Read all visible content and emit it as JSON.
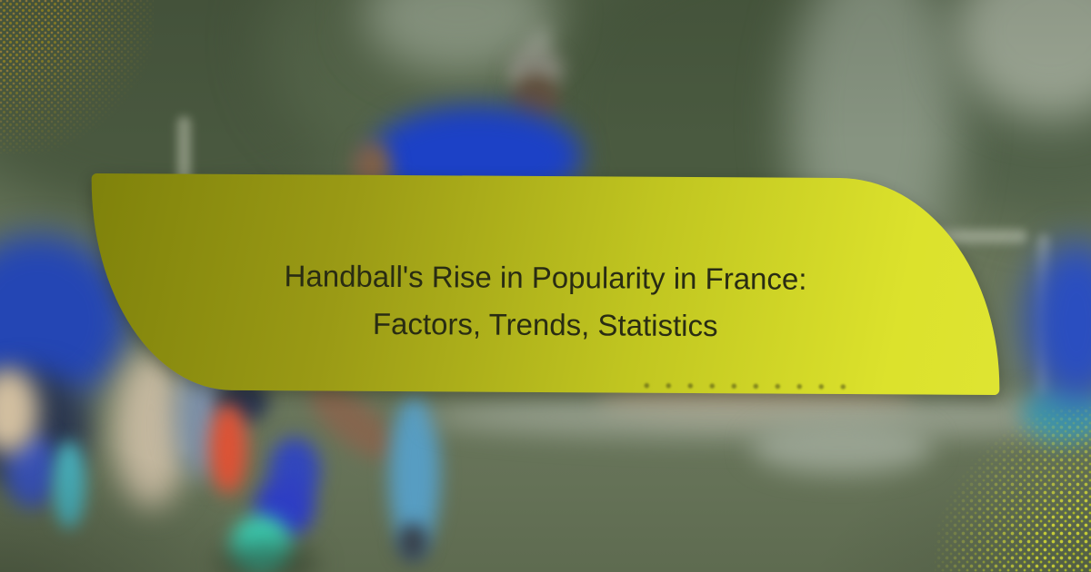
{
  "card": {
    "title_line1": "Handball's Rise in Popularity in France:",
    "title_line2": "Factors, Trends, Statistics"
  },
  "palette": {
    "banner_gradient_left": "#7f820b",
    "banner_gradient_right": "#dde22c",
    "title_text_color": "#292c13",
    "field_green": "#66735a",
    "tree_green": "#4a5a40",
    "jersey_blue": "#1c41c6",
    "cone_orange": "#dd5234",
    "teal_accent": "#3bcdb2",
    "halftone_yellow": "#d8e02b"
  }
}
